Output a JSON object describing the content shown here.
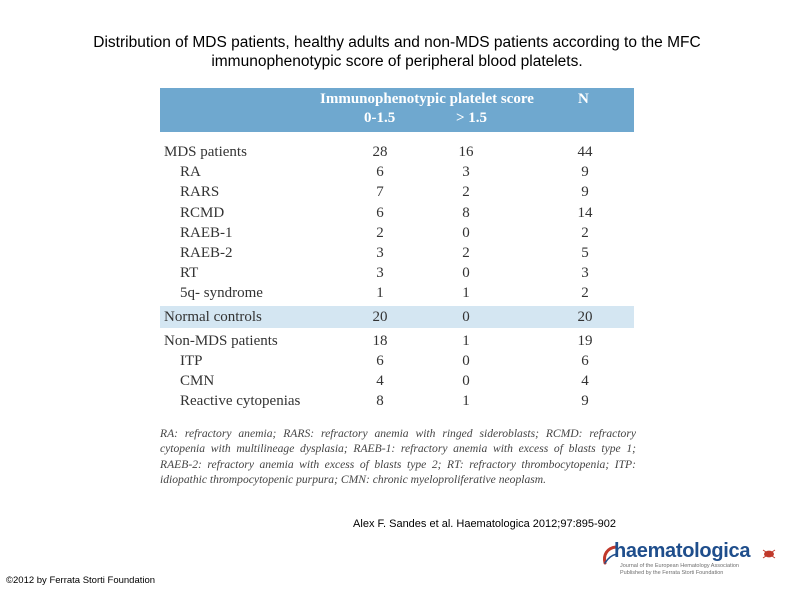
{
  "title_line1": "Distribution of MDS patients, healthy adults and non-MDS patients according to the MFC",
  "title_line2": "immunophenotypic score of peripheral blood platelets.",
  "table": {
    "header_main": "Immunophenotypic platelet score",
    "header_n": "N",
    "header_sub1": "0-1.5",
    "header_sub2": "> 1.5",
    "rows": [
      {
        "label": "MDS patients",
        "c1": "28",
        "c2": "16",
        "c3": "44"
      },
      {
        "label": "RA",
        "c1": "6",
        "c2": "3",
        "c3": "9"
      },
      {
        "label": "RARS",
        "c1": "7",
        "c2": "2",
        "c3": "9"
      },
      {
        "label": "RCMD",
        "c1": "6",
        "c2": "8",
        "c3": "14"
      },
      {
        "label": "RAEB-1",
        "c1": "2",
        "c2": "0",
        "c3": "2"
      },
      {
        "label": "RAEB-2",
        "c1": "3",
        "c2": "2",
        "c3": "5"
      },
      {
        "label": "RT",
        "c1": "3",
        "c2": "0",
        "c3": "3"
      },
      {
        "label": "5q- syndrome",
        "c1": "1",
        "c2": "1",
        "c3": "2"
      },
      {
        "label": "Normal controls",
        "c1": "20",
        "c2": "0",
        "c3": "20"
      },
      {
        "label": "Non-MDS patients",
        "c1": "18",
        "c2": "1",
        "c3": "19"
      },
      {
        "label": "ITP",
        "c1": "6",
        "c2": "0",
        "c3": "6"
      },
      {
        "label": "CMN",
        "c1": "4",
        "c2": "0",
        "c3": "4"
      },
      {
        "label": "Reactive cytopenias",
        "c1": "8",
        "c2": "1",
        "c3": "9"
      }
    ],
    "highlight_color": "#d4e6f2",
    "header_color": "#6fa8cf"
  },
  "footnote": "RA: refractory anemia; RARS: refractory anemia with ringed sideroblasts; RCMD: refractory cytopenia with multilineage dysplasia; RAEB-1: refractory anemia with excess of blasts type 1; RAEB-2: refractory anemia with excess of blasts type 2; RT: refractory thrombocytopenia; ITP: idiopathic thrompocytopenic purpura; CMN: chronic myeloproliferative neoplasm.",
  "citation": "Alex F. Sandes et al. Haematologica 2012;97:895-902",
  "copyright": "©2012 by Ferrata Storti Foundation",
  "logo": {
    "brand": "haematologica",
    "tagline_1": "Journal of the European Hematology Association",
    "tagline_2": "Published by the Ferrata Storti Foundation",
    "brand_color": "#1f4e8c"
  }
}
